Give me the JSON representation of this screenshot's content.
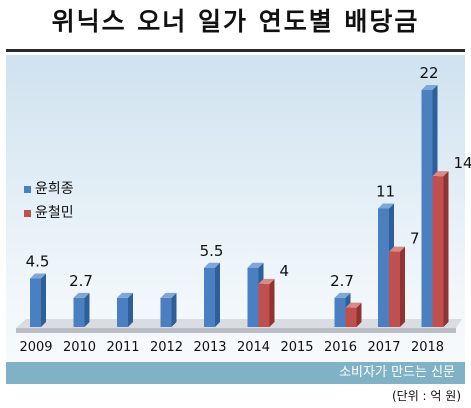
{
  "title": "위닉스 오너 일가 연도별 배당금",
  "source": "소비자가 만드는 신문",
  "unit": "(단위 : 억 원)",
  "colors": {
    "blue": "#4a7fc1",
    "red": "#c0504d"
  },
  "chart_data": {
    "type": "bar",
    "categories": [
      "2009",
      "2010",
      "2011",
      "2012",
      "2013",
      "2014",
      "2015",
      "2016",
      "2017",
      "2018"
    ],
    "series": [
      {
        "name": "윤희종",
        "values": [
          4.5,
          2.7,
          2.7,
          2.7,
          5.5,
          5.5,
          0,
          2.7,
          11,
          22
        ]
      },
      {
        "name": "윤철민",
        "values": [
          0,
          0,
          0,
          0,
          0,
          4,
          0,
          1.8,
          7,
          14
        ]
      }
    ],
    "data_labels": [
      {
        "category": "2009",
        "series": 0,
        "text": "4.5"
      },
      {
        "category": "2010",
        "series": 0,
        "text": "2.7"
      },
      {
        "category": "2013",
        "series": 0,
        "text": "5.5"
      },
      {
        "category": "2014",
        "series": 1,
        "text": "4"
      },
      {
        "category": "2016",
        "series": 0,
        "text": "2.7"
      },
      {
        "category": "2017",
        "series": 0,
        "text": "11"
      },
      {
        "category": "2017",
        "series": 1,
        "text": "7"
      },
      {
        "category": "2018",
        "series": 0,
        "text": "22"
      },
      {
        "category": "2018",
        "series": 1,
        "text": "14"
      }
    ],
    "ylim": [
      0,
      22
    ],
    "legend": "left",
    "grid": false
  }
}
